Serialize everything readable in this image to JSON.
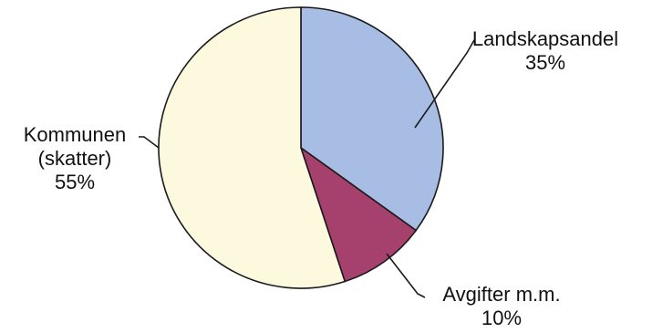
{
  "chart_data": {
    "type": "pie",
    "title": "",
    "start_angle_deg": 0,
    "direction": "clockwise",
    "legend": "none",
    "slices": [
      {
        "label_lines": [
          "Landskapsandel",
          "35%"
        ],
        "value": 35,
        "color": "#a7bde3"
      },
      {
        "label_lines": [
          "Avgifter m.m.",
          "10%"
        ],
        "value": 10,
        "color": "#a6416e"
      },
      {
        "label_lines": [
          "Kommunen",
          "(skatter)",
          "55%"
        ],
        "value": 55,
        "color": "#fcf9df"
      }
    ]
  }
}
